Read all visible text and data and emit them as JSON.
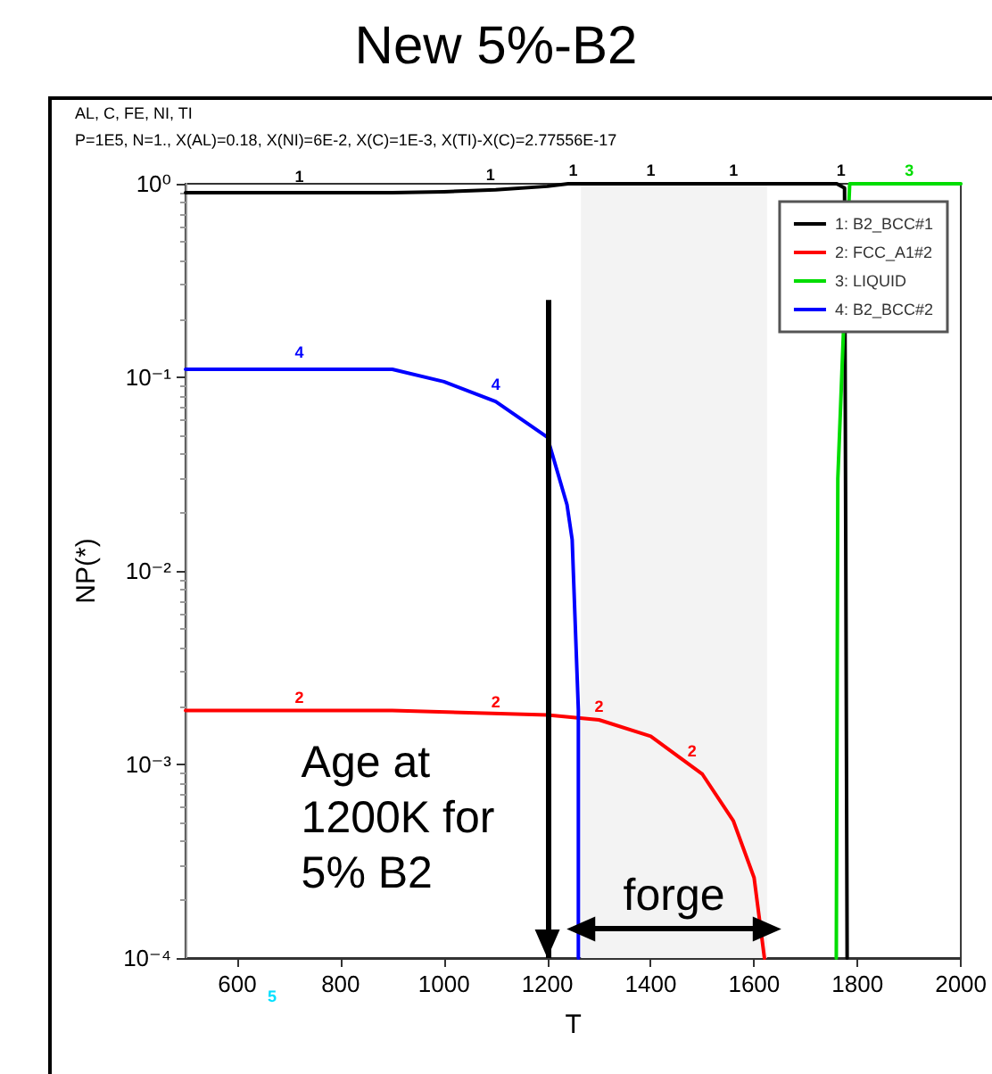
{
  "chart_data": {
    "type": "line",
    "title": "New 5%-B2",
    "xlabel": "T",
    "ylabel": "NP(*)",
    "log": "y",
    "grid": false,
    "legend": "top right",
    "marker": "none",
    "line_style": "solid",
    "xlim": [
      500,
      2000
    ],
    "xticks": [
      600,
      800,
      1000,
      1200,
      1400,
      1600,
      1800,
      2000
    ],
    "ylim": [
      0.0001,
      1
    ],
    "yticks": [
      {
        "value": 0.0001,
        "label": "10⁻⁴"
      },
      {
        "value": 0.001,
        "label": "10⁻³"
      },
      {
        "value": 0.01,
        "label": "10⁻²"
      },
      {
        "value": 0.1,
        "label": "10⁻¹"
      },
      {
        "value": 1,
        "label": "10⁰"
      }
    ],
    "series": [
      {
        "name": "1: B2_BCC#1",
        "color": "#000000",
        "x": [
          500,
          700,
          900,
          1000,
          1100,
          1200,
          1240,
          1760,
          1775,
          1780
        ],
        "values": [
          0.9,
          0.9,
          0.9,
          0.91,
          0.93,
          0.97,
          1,
          1,
          0.95,
          0.0001
        ]
      },
      {
        "name": "2: FCC_A1#2",
        "color": "#ff0000",
        "x": [
          500,
          900,
          1200,
          1250,
          1300,
          1400,
          1500,
          1560,
          1600,
          1620
        ],
        "values": [
          0.0019,
          0.0019,
          0.0018,
          0.00175,
          0.0017,
          0.0014,
          0.00089,
          0.00051,
          0.00026,
          0.0001
        ]
      },
      {
        "name": "3: LIQUID",
        "color": "#00dd00",
        "x": [
          1759,
          1762,
          1772,
          1785,
          2000
        ],
        "values": [
          0.0001,
          0.03,
          0.15,
          1,
          1
        ]
      },
      {
        "name": "4: B2_BCC#2",
        "color": "#0000ff",
        "x": [
          500,
          900,
          1000,
          1100,
          1200,
          1238,
          1248,
          1260,
          1260
        ],
        "values": [
          0.11,
          0.11,
          0.095,
          0.075,
          0.049,
          0.022,
          0.0145,
          0.0019,
          0.0001
        ]
      }
    ],
    "ref_lines": [
      {
        "axis": "x",
        "value": 1200,
        "label": "Age at\n1200K for\n5% B2",
        "color": "#000000"
      }
    ],
    "bands": [
      {
        "axis": "x",
        "from": 1265,
        "to": 1625,
        "label": "forge",
        "color": "#f3f3f3"
      }
    ],
    "annotations": [
      "AL, C, FE, NI, TI",
      "P=1E5, N=1., X(AL)=0.18, X(NI)=6E-2, X(C)=1E-3, X(TI)-X(C)=2.77556E-17",
      "5",
      {
        "text": "1",
        "x": 720,
        "y": 0.93
      },
      {
        "text": "1",
        "x": 1090,
        "y": 0.95
      },
      {
        "text": "1",
        "x": 1250,
        "y": 1
      },
      {
        "text": "1",
        "x": 1400,
        "y": 1
      },
      {
        "text": "1",
        "x": 1560,
        "y": 1
      },
      {
        "text": "1",
        "x": 1768,
        "y": 1
      },
      {
        "text": "3",
        "x": 1900,
        "y": 1
      },
      {
        "text": "4",
        "x": 720,
        "y": 0.115
      },
      {
        "text": "4",
        "x": 1100,
        "y": 0.078
      },
      {
        "text": "2",
        "x": 720,
        "y": 0.0019
      },
      {
        "text": "2",
        "x": 1100,
        "y": 0.0018
      },
      {
        "text": "2",
        "x": 1300,
        "y": 0.0017
      },
      {
        "text": "2",
        "x": 1480,
        "y": 0.001
      }
    ]
  }
}
